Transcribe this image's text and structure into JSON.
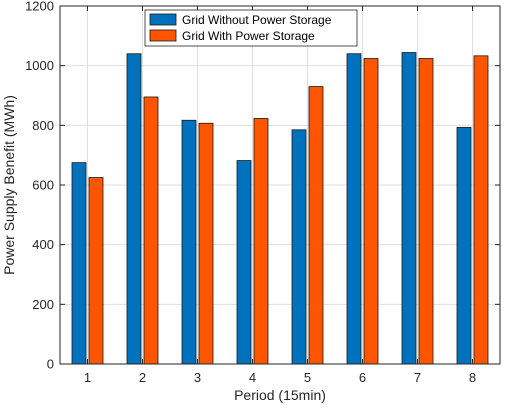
{
  "chart_data": {
    "type": "bar",
    "title": "",
    "xlabel": "Period (15min)",
    "ylabel": "Power Supply Benefit (MWh)",
    "categories": [
      "1",
      "2",
      "3",
      "4",
      "5",
      "6",
      "7",
      "8"
    ],
    "ylim": [
      0,
      1200
    ],
    "yticks": [
      0,
      200,
      400,
      600,
      800,
      1000,
      1200
    ],
    "grid": true,
    "legend_position": "top-center",
    "series": [
      {
        "name": "Grid Without Power Storage",
        "color": "#0072BD",
        "values": [
          675,
          1040,
          817,
          682,
          785,
          1040,
          1044,
          793
        ]
      },
      {
        "name": "Grid With Power Storage",
        "color": "#FF5500",
        "values": [
          625,
          895,
          807,
          823,
          930,
          1024,
          1024,
          1033
        ]
      }
    ]
  }
}
